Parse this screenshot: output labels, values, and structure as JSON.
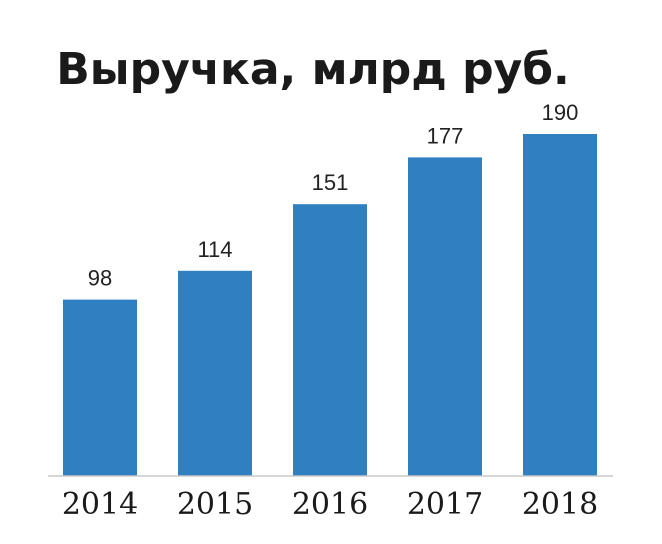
{
  "chart_data": {
    "type": "bar",
    "title": "Выручка, млрд руб.",
    "xlabel": "",
    "ylabel": "",
    "categories": [
      "2014",
      "2015",
      "2016",
      "2017",
      "2018"
    ],
    "values": [
      98,
      114,
      151,
      177,
      190
    ],
    "data_labels": [
      "98",
      "114",
      "151",
      "177",
      "190"
    ],
    "ylim": [
      0,
      190
    ],
    "grid": false,
    "legend": "none",
    "colors": {
      "bar": "#2f7fc1",
      "text": "#1a1a1a",
      "axis": "#c9c9c9"
    }
  }
}
